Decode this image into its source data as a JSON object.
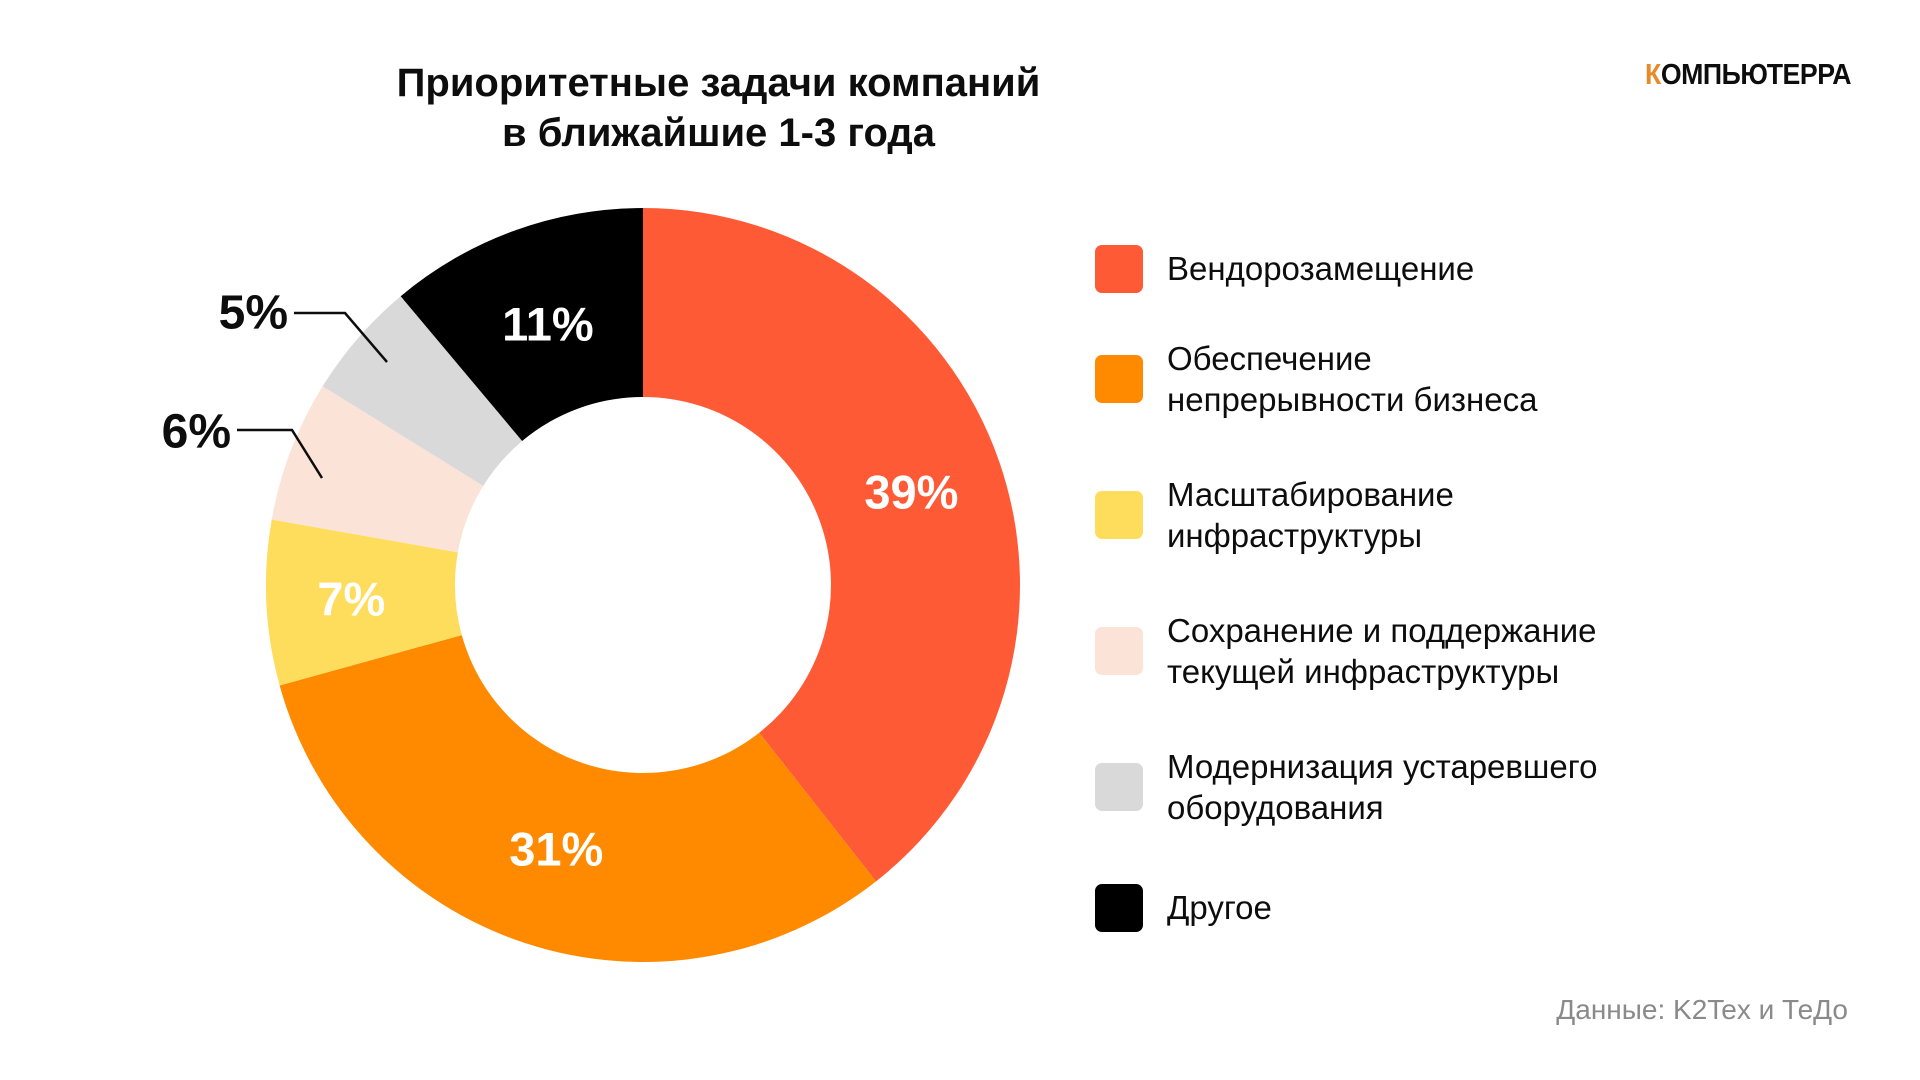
{
  "logo": {
    "first_letter": "К",
    "rest": "ОМПЬЮТЕРРА",
    "accent_color": "#e8892a"
  },
  "source_note": "Данные: K2Tex и ТеДо",
  "chart_data": {
    "type": "pie",
    "variant": "donut",
    "title_lines": [
      "Приоритетные задачи компаний",
      "в ближайшие 1-3 года"
    ],
    "unit": "%",
    "legend_position": "right",
    "slices": [
      {
        "label": "Вендорозамещение",
        "value": 39,
        "display": "39%",
        "color": "#ff5a36",
        "label_color": "#ffffff",
        "label_placement": "inside"
      },
      {
        "label": "Обеспечение непрерывности бизнеса",
        "value": 31,
        "display": "31%",
        "color": "#ff8a00",
        "label_color": "#ffffff",
        "label_placement": "inside"
      },
      {
        "label": "Масштабирование инфраструктуры",
        "value": 7,
        "display": "7%",
        "color": "#ffdd5c",
        "label_color": "#ffffff",
        "label_placement": "inside"
      },
      {
        "label": "Сохранение и поддержание текущей инфраструктуры",
        "value": 6,
        "display": "6%",
        "color": "#fbe3d8",
        "label_color": "#0d0d0d",
        "label_placement": "outside"
      },
      {
        "label": "Модернизация устаревшего оборудования",
        "value": 5,
        "display": "5%",
        "color": "#d9d9d9",
        "label_color": "#0d0d0d",
        "label_placement": "outside"
      },
      {
        "label": "Другое",
        "value": 11,
        "display": "11%",
        "color": "#000000",
        "label_color": "#ffffff",
        "label_placement": "inside"
      }
    ],
    "legend": [
      {
        "lines": [
          "Вендорозамещение"
        ],
        "color": "#ff5a36"
      },
      {
        "lines": [
          "Обеспечение",
          "непрерывности бизнеса"
        ],
        "color": "#ff8a00"
      },
      {
        "lines": [
          "Масштабирование",
          "инфраструктуры"
        ],
        "color": "#ffdd5c"
      },
      {
        "lines": [
          "Сохранение и поддержание",
          "текущей инфраструктуры"
        ],
        "color": "#fbe3d8"
      },
      {
        "lines": [
          "Модернизация устаревшего",
          "оборудования"
        ],
        "color": "#d9d9d9"
      },
      {
        "lines": [
          "Другое"
        ],
        "color": "#000000"
      }
    ]
  }
}
